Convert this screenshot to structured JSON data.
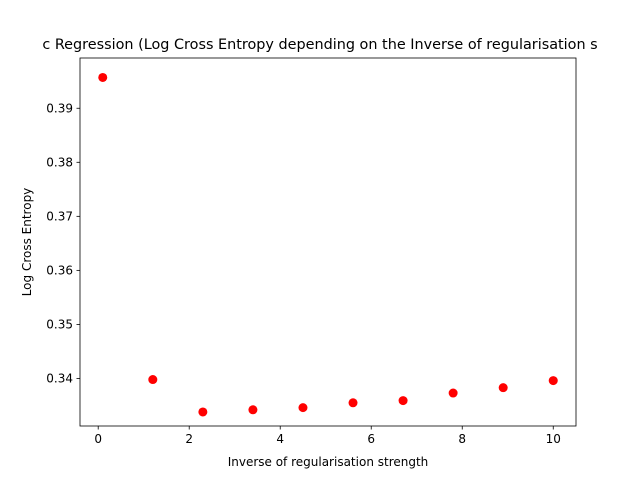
{
  "chart_data": {
    "type": "scatter",
    "title": "c Regression (Log Cross Entropy depending on the Inverse of regularisation s",
    "xlabel": "Inverse of regularisation strength",
    "ylabel": "Log Cross Entropy",
    "xlim": [
      -0.4,
      10.5
    ],
    "ylim": [
      0.3312,
      0.3993
    ],
    "x_ticks": [
      0,
      2,
      4,
      6,
      8,
      10
    ],
    "x_tick_labels": [
      "0",
      "2",
      "4",
      "6",
      "8",
      "10"
    ],
    "y_ticks": [
      0.34,
      0.35,
      0.36,
      0.37,
      0.38,
      0.39
    ],
    "y_tick_labels": [
      "0.34",
      "0.35",
      "0.36",
      "0.37",
      "0.38",
      "0.39"
    ],
    "grid": false,
    "legend": "none",
    "marker_color": "#ff0000",
    "series": [
      {
        "x": [
          0.1,
          1.2,
          2.3,
          3.4,
          4.5,
          5.6,
          6.7,
          7.8,
          8.9,
          10.0
        ],
        "y": [
          0.3957,
          0.3398,
          0.3338,
          0.3342,
          0.3346,
          0.3355,
          0.3359,
          0.3373,
          0.3383,
          0.3396
        ]
      }
    ]
  }
}
